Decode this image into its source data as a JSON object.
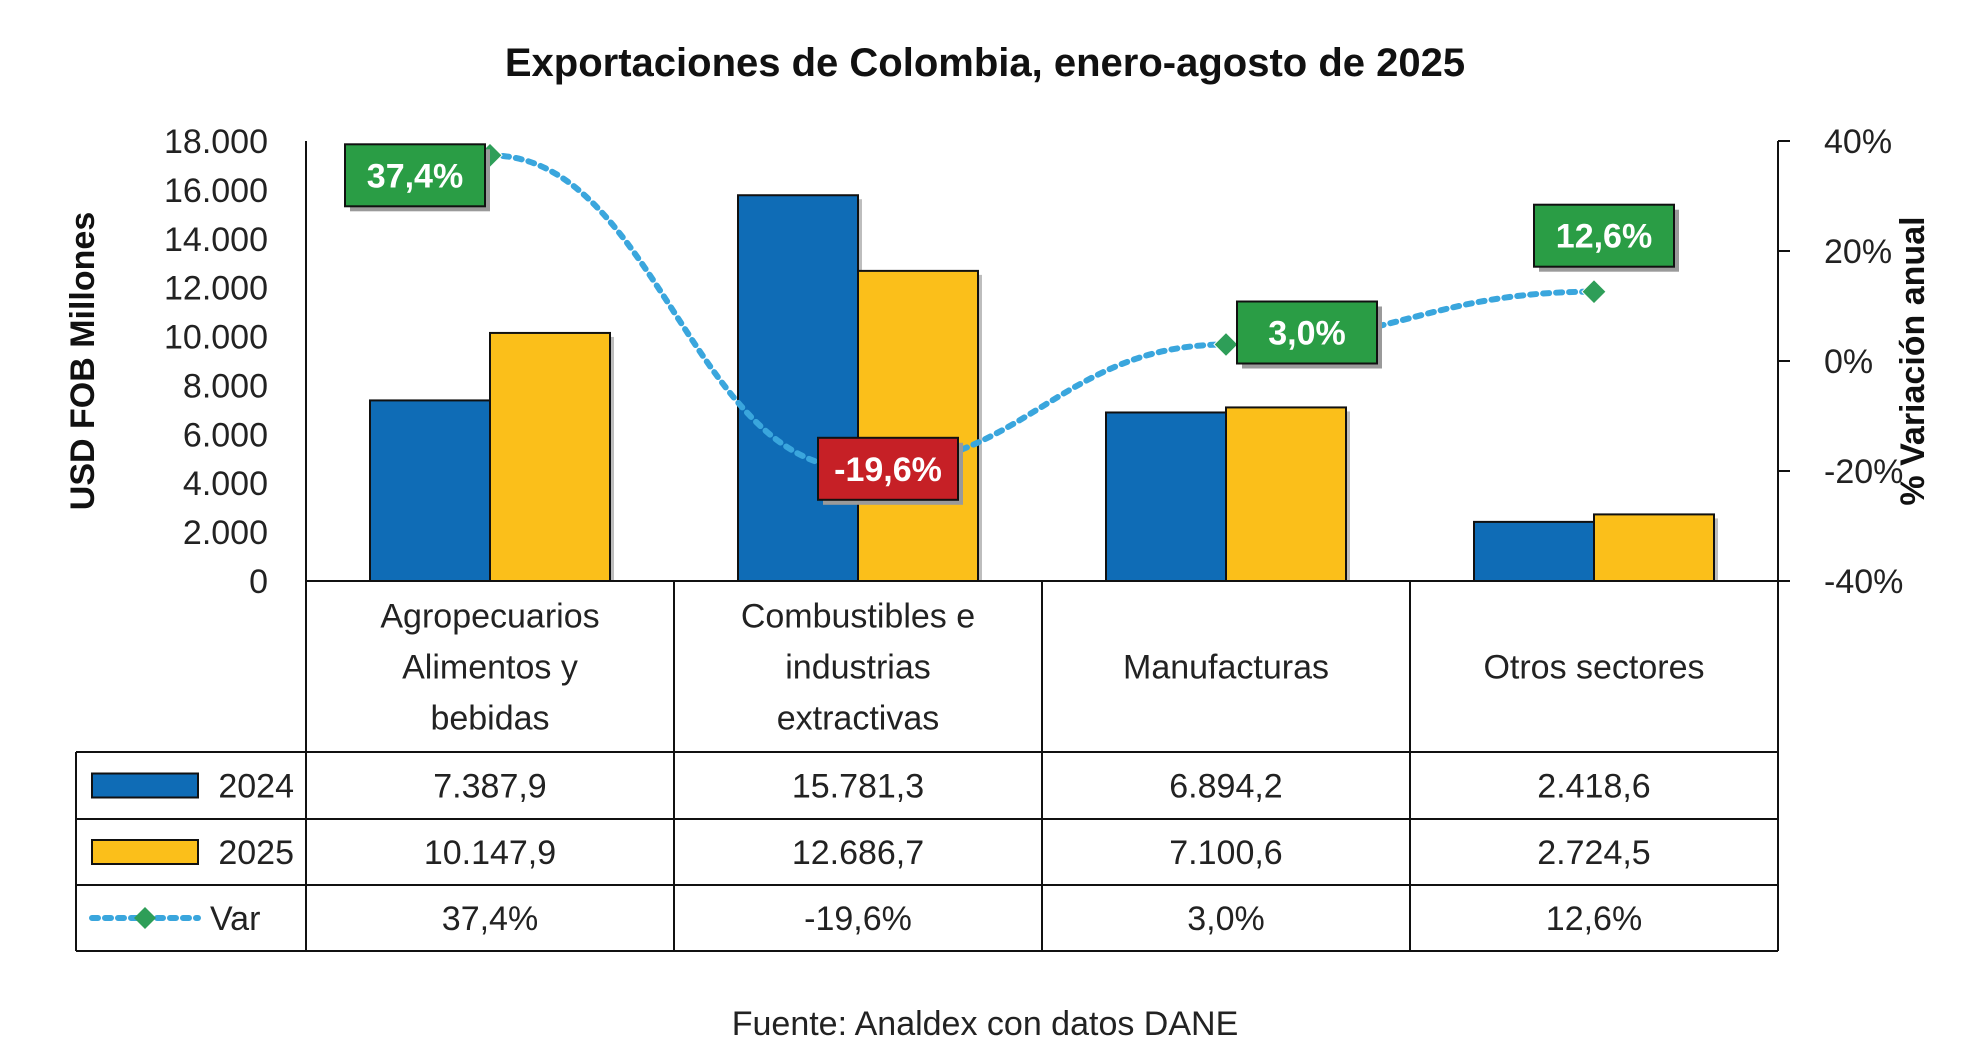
{
  "chart_data": {
    "type": "bar",
    "title": "Exportaciones de Colombia, enero-agosto de 2025",
    "categories": [
      [
        "Agropecuarios",
        "Alimentos y",
        "bebidas"
      ],
      [
        "Combustibles e",
        "industrias",
        "extractivas"
      ],
      [
        "Manufacturas"
      ],
      [
        "Otros sectores"
      ]
    ],
    "series": [
      {
        "name": "2024",
        "kind": "bar",
        "color": "#0f6cb6",
        "values": [
          7387.9,
          15781.3,
          6894.2,
          2418.6
        ],
        "table_values": [
          "7.387,9",
          "15.781,3",
          "6.894,2",
          "2.418,6"
        ]
      },
      {
        "name": "2025",
        "kind": "bar",
        "color": "#fbbf1a",
        "values": [
          10147.9,
          12686.7,
          7100.6,
          2724.5
        ],
        "table_values": [
          "10.147,9",
          "12.686,7",
          "7.100,6",
          "2.724,5"
        ]
      },
      {
        "name": "Var",
        "kind": "line",
        "axis": "right",
        "color": "#3aa6dd",
        "values": [
          37.4,
          -19.6,
          3.0,
          12.6
        ],
        "table_values": [
          "37,4%",
          "-19,6%",
          "3,0%",
          "12,6%"
        ]
      }
    ],
    "var_labels": [
      "37,4%",
      "-19,6%",
      "3,0%",
      "12,6%"
    ],
    "label_colors": {
      "positive": "#2a9d45",
      "negative": "#c62026"
    },
    "marker_colors": {
      "positive": "#2e9e58",
      "negative": "#e3262d"
    },
    "ylabel": "USD FOB Millones",
    "ylim": [
      0,
      18000
    ],
    "yticks": [
      "0",
      "2.000",
      "4.000",
      "6.000",
      "8.000",
      "10.000",
      "12.000",
      "14.000",
      "16.000",
      "18.000"
    ],
    "y2label": "% Variación anual",
    "y2lim": [
      -40,
      40
    ],
    "y2ticks": [
      "-40%",
      "-20%",
      "0%",
      "20%",
      "40%"
    ],
    "source": "Fuente: Analdex con datos DANE"
  }
}
